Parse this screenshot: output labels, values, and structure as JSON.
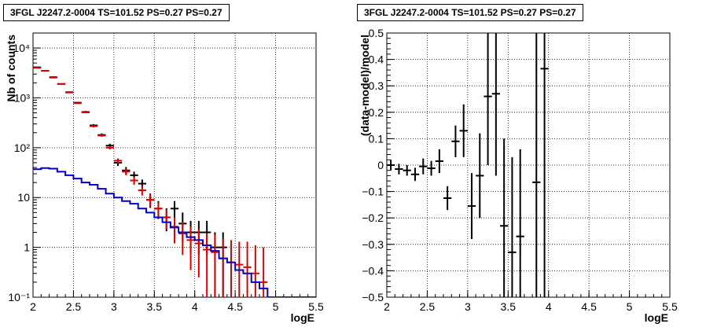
{
  "chart_data": [
    {
      "type": "line",
      "title": "3FGL J2247.2-0004 TS=101.52 PS=0.27 PS=0.27",
      "xlabel": "logE",
      "ylabel": "Nb of counts",
      "xlim": [
        2,
        5.5
      ],
      "ylim": [
        0.1,
        20000
      ],
      "yscale": "log",
      "grid": true,
      "x_ticks": [
        "2",
        "2.5",
        "3",
        "3.5",
        "4",
        "4.5",
        "5",
        "5.5"
      ],
      "y_ticks": [
        {
          "value": 0.1,
          "label": "10⁻¹"
        },
        {
          "value": 1,
          "label": "1"
        },
        {
          "value": 10,
          "label": "10"
        },
        {
          "value": 100,
          "label": "10²"
        },
        {
          "value": 1000,
          "label": "10³"
        },
        {
          "value": 10000,
          "label": "10⁴"
        }
      ],
      "bin_width": 0.1,
      "series": [
        {
          "kind": "data_points",
          "color": "#000000",
          "x": [
            2.05,
            2.15,
            2.25,
            2.35,
            2.45,
            2.55,
            2.65,
            2.75,
            2.85,
            2.95,
            3.05,
            3.15,
            3.25,
            3.35,
            3.45,
            3.55,
            3.65,
            3.75,
            3.85,
            3.95,
            4.05,
            4.15,
            4.25,
            4.35
          ],
          "y": [
            4100,
            3500,
            2600,
            1900,
            1300,
            800,
            520,
            280,
            180,
            110,
            50,
            35,
            28,
            19,
            9,
            6,
            4,
            6,
            3,
            2,
            2,
            2,
            1,
            1
          ],
          "lo": [
            4000,
            3400,
            2500,
            1850,
            1260,
            770,
            495,
            263,
            167,
            100,
            43,
            29,
            23,
            15,
            6.2,
            3.7,
            2.1,
            3.7,
            1.3,
            0.7,
            0.7,
            0.7,
            0.1,
            0.1
          ],
          "hi": [
            4200,
            3600,
            2700,
            1950,
            1340,
            830,
            545,
            297,
            193,
            120,
            57,
            41,
            33,
            23,
            12,
            8.5,
            6.1,
            8.5,
            5,
            3.4,
            3.4,
            3.4,
            2,
            2
          ]
        },
        {
          "kind": "model_points",
          "color": "#e00000",
          "x": [
            2.05,
            2.15,
            2.25,
            2.35,
            2.45,
            2.55,
            2.65,
            2.75,
            2.85,
            2.95,
            3.05,
            3.15,
            3.25,
            3.35,
            3.45,
            3.55,
            3.65,
            3.75,
            3.85,
            3.95,
            4.05,
            4.15,
            4.25,
            4.35,
            4.45,
            4.55,
            4.65,
            4.75,
            4.85
          ],
          "y": [
            4000,
            3500,
            2550,
            1900,
            1280,
            780,
            510,
            270,
            175,
            100,
            55,
            33,
            22,
            14,
            9,
            6,
            4,
            2.6,
            1.9,
            1.4,
            1.2,
            0.9,
            0.8,
            0.6,
            0.5,
            0.45,
            0.4,
            0.3,
            0.2
          ],
          "lo": [
            3940,
            3440,
            2500,
            1860,
            1245,
            755,
            490,
            255,
            165,
            92,
            49,
            28,
            18,
            11,
            6.5,
            4,
            2.3,
            1.2,
            0.7,
            0.35,
            0.25,
            0.1,
            0.1,
            0.1,
            0.1,
            0.1,
            0.1,
            0.1,
            0.1
          ],
          "hi": [
            4060,
            3560,
            2600,
            1940,
            1315,
            805,
            530,
            285,
            185,
            108,
            61,
            38,
            26,
            17,
            11.5,
            8,
            5.8,
            4,
            3.2,
            2.6,
            2.3,
            1.9,
            1.8,
            1.5,
            1.4,
            1.3,
            1.3,
            1.1,
            1.0
          ]
        },
        {
          "kind": "model_histogram",
          "color": "#0000cc",
          "x": [
            2.0,
            2.1,
            2.2,
            2.3,
            2.4,
            2.5,
            2.6,
            2.7,
            2.8,
            2.9,
            3.0,
            3.1,
            3.2,
            3.3,
            3.4,
            3.5,
            3.6,
            3.7,
            3.8,
            3.9,
            4.0,
            4.1,
            4.2,
            4.3,
            4.4,
            4.5,
            4.6,
            4.7,
            4.8,
            4.9,
            5.0,
            5.1,
            5.2,
            5.3,
            5.4
          ],
          "y": [
            37,
            39,
            38,
            33,
            28,
            24,
            20,
            18,
            15,
            12,
            10,
            8.5,
            7.5,
            6,
            5,
            4,
            3.2,
            2.5,
            2.0,
            1.6,
            1.4,
            1.1,
            0.85,
            0.6,
            0.5,
            0.35,
            0.3,
            0.2,
            0.15,
            0.1,
            0.1,
            0.1,
            0.1,
            0.1,
            0.1
          ]
        }
      ]
    },
    {
      "type": "scatter",
      "title": "3FGL J2247.2-0004 TS=101.52 PS=0.27 PS=0.27",
      "xlabel": "logE",
      "ylabel": "(data-model)/model",
      "xlim": [
        2,
        5.5
      ],
      "ylim": [
        -0.5,
        0.5
      ],
      "grid": true,
      "x_ticks": [
        "2",
        "2.5",
        "3",
        "3.5",
        "4",
        "4.5",
        "5",
        "5.5"
      ],
      "y_ticks": [
        {
          "value": -0.5,
          "label": "−0.5"
        },
        {
          "value": -0.4,
          "label": "−0.4"
        },
        {
          "value": -0.3,
          "label": "−0.3"
        },
        {
          "value": -0.2,
          "label": "−0.2"
        },
        {
          "value": -0.1,
          "label": "−0.1"
        },
        {
          "value": 0,
          "label": "0"
        },
        {
          "value": 0.1,
          "label": "0.1"
        },
        {
          "value": 0.2,
          "label": "0.2"
        },
        {
          "value": 0.3,
          "label": "0.3"
        },
        {
          "value": 0.4,
          "label": "0.4"
        },
        {
          "value": 0.5,
          "label": "0.5"
        }
      ],
      "bin_width": 0.1,
      "series": [
        {
          "kind": "residuals",
          "color": "#000000",
          "x": [
            2.05,
            2.15,
            2.25,
            2.35,
            2.45,
            2.55,
            2.65,
            2.75,
            2.85,
            2.95,
            3.05,
            3.15,
            3.25,
            3.35,
            3.45,
            3.55,
            3.65,
            3.85,
            3.95
          ],
          "y": [
            0.0,
            -0.015,
            -0.02,
            -0.035,
            -0.005,
            -0.012,
            0.015,
            -0.125,
            0.09,
            0.13,
            -0.155,
            -0.04,
            0.26,
            0.27,
            -0.23,
            -0.33,
            -0.27,
            -0.065,
            0.365
          ],
          "lo": [
            -0.02,
            -0.035,
            -0.04,
            -0.06,
            -0.035,
            -0.04,
            -0.03,
            -0.17,
            0.03,
            0.03,
            -0.28,
            -0.2,
            0.0,
            -0.04,
            -0.6,
            -0.6,
            -0.6,
            -0.6,
            -0.6
          ],
          "hi": [
            0.02,
            0.005,
            0.0,
            -0.01,
            0.025,
            0.016,
            0.06,
            -0.08,
            0.15,
            0.23,
            -0.03,
            0.12,
            0.6,
            0.6,
            0.1,
            0.03,
            0.06,
            0.6,
            0.6
          ]
        }
      ]
    }
  ]
}
